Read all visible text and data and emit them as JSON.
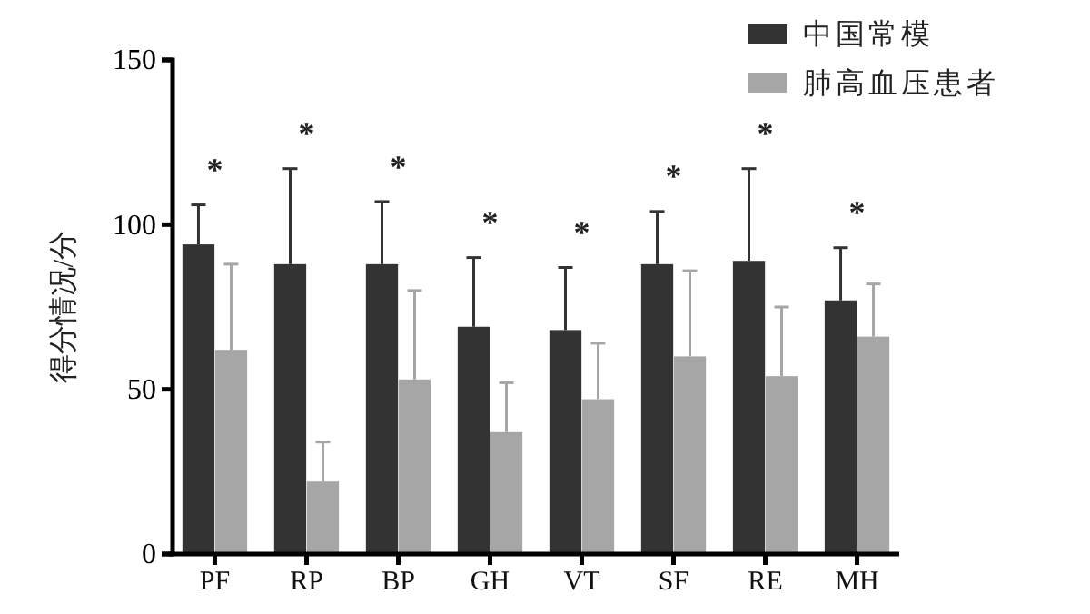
{
  "chart_data": {
    "type": "bar",
    "ylabel": "得分情况/分",
    "categories": [
      "PF",
      "RP",
      "BP",
      "GH",
      "VT",
      "SF",
      "RE",
      "MH"
    ],
    "series": [
      {
        "name": "中国常模",
        "color": "#333333",
        "values": [
          94,
          88,
          88,
          69,
          68,
          88,
          89,
          77
        ],
        "errors": [
          [
            94,
            106
          ],
          [
            88,
            117
          ],
          [
            88,
            107
          ],
          [
            69,
            90
          ],
          [
            68,
            87
          ],
          [
            88,
            104
          ],
          [
            89,
            117
          ],
          [
            77,
            93
          ]
        ]
      },
      {
        "name": "肺高血压患者",
        "color": "#a6a6a6",
        "values": [
          62,
          22,
          53,
          37,
          47,
          60,
          54,
          66
        ],
        "errors": [
          [
            62,
            88
          ],
          [
            22,
            34
          ],
          [
            53,
            80
          ],
          [
            37,
            52
          ],
          [
            47,
            64
          ],
          [
            60,
            86
          ],
          [
            54,
            75
          ],
          [
            66,
            82
          ]
        ]
      }
    ],
    "annotations": [
      "*",
      "*",
      "*",
      "*",
      "*",
      "*",
      "*",
      "*"
    ],
    "ylim": [
      0,
      150
    ],
    "yticks": [
      0,
      50,
      100,
      150
    ],
    "grid": false,
    "legend": "top right"
  }
}
